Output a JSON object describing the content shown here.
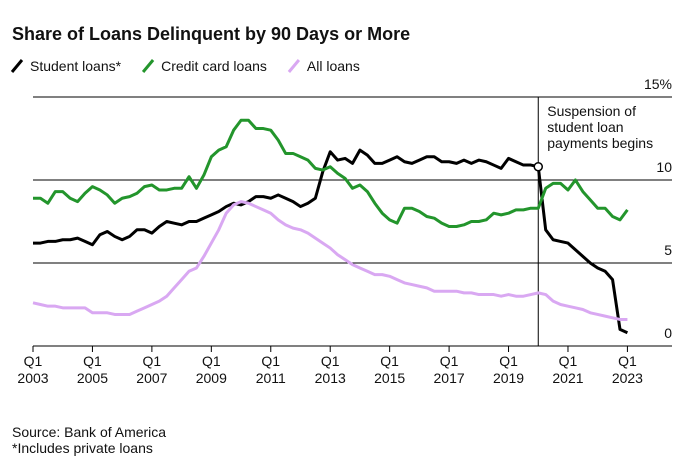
{
  "chart_data": {
    "type": "line",
    "title": "Share of Loans Delinquent by 90 Days or More",
    "source": "Source: Bank of America",
    "footnote": "*Includes private loans",
    "annotation": {
      "x": 2020,
      "text": [
        "Suspension of",
        "student loan",
        "payments begins"
      ]
    },
    "x": [
      2003,
      2003.25,
      2003.5,
      2003.75,
      2004,
      2004.25,
      2004.5,
      2004.75,
      2005,
      2005.25,
      2005.5,
      2005.75,
      2006,
      2006.25,
      2006.5,
      2006.75,
      2007,
      2007.25,
      2007.5,
      2007.75,
      2008,
      2008.25,
      2008.5,
      2008.75,
      2009,
      2009.25,
      2009.5,
      2009.75,
      2010,
      2010.25,
      2010.5,
      2010.75,
      2011,
      2011.25,
      2011.5,
      2011.75,
      2012,
      2012.25,
      2012.5,
      2012.75,
      2013,
      2013.25,
      2013.5,
      2013.75,
      2014,
      2014.25,
      2014.5,
      2014.75,
      2015,
      2015.25,
      2015.5,
      2015.75,
      2016,
      2016.25,
      2016.5,
      2016.75,
      2017,
      2017.25,
      2017.5,
      2017.75,
      2018,
      2018.25,
      2018.5,
      2018.75,
      2019,
      2019.25,
      2019.5,
      2019.75,
      2020,
      2020.25,
      2020.5,
      2020.75,
      2021,
      2021.25,
      2021.5,
      2021.75,
      2022,
      2022.25,
      2022.5,
      2022.75,
      2023
    ],
    "series": [
      {
        "name": "Student loans*",
        "color": "#000000",
        "values": [
          6.2,
          6.2,
          6.3,
          6.3,
          6.4,
          6.4,
          6.5,
          6.3,
          6.1,
          6.7,
          6.9,
          6.6,
          6.4,
          6.6,
          7.0,
          7.0,
          6.8,
          7.2,
          7.5,
          7.4,
          7.3,
          7.5,
          7.5,
          7.7,
          7.9,
          8.1,
          8.4,
          8.6,
          8.5,
          8.7,
          9.0,
          9.0,
          8.9,
          9.1,
          8.9,
          8.7,
          8.4,
          8.6,
          8.9,
          10.5,
          11.7,
          11.2,
          11.3,
          11.0,
          11.8,
          11.5,
          11.0,
          11.0,
          11.2,
          11.4,
          11.1,
          11.0,
          11.2,
          11.4,
          11.4,
          11.1,
          11.1,
          11.0,
          11.2,
          11.0,
          11.2,
          11.1,
          10.9,
          10.7,
          11.3,
          11.1,
          10.9,
          10.9,
          10.8,
          7.0,
          6.4,
          6.3,
          6.2,
          5.8,
          5.4,
          5.0,
          4.7,
          4.5,
          4.0,
          1.0,
          0.8
        ]
      },
      {
        "name": "Credit card loans",
        "color": "#23952c",
        "values": [
          8.9,
          8.9,
          8.6,
          9.3,
          9.3,
          8.9,
          8.7,
          9.2,
          9.6,
          9.4,
          9.1,
          8.6,
          8.9,
          9.0,
          9.2,
          9.6,
          9.7,
          9.4,
          9.4,
          9.5,
          9.5,
          10.2,
          9.5,
          10.3,
          11.4,
          11.8,
          12.0,
          13.0,
          13.6,
          13.6,
          13.1,
          13.1,
          13.0,
          12.4,
          11.6,
          11.6,
          11.4,
          11.2,
          10.7,
          10.6,
          10.8,
          10.4,
          10.1,
          9.5,
          9.7,
          9.3,
          8.6,
          8.0,
          7.6,
          7.4,
          8.3,
          8.3,
          8.1,
          7.8,
          7.7,
          7.4,
          7.2,
          7.2,
          7.3,
          7.5,
          7.5,
          7.6,
          8.0,
          7.9,
          8.0,
          8.2,
          8.2,
          8.3,
          8.3,
          9.5,
          9.8,
          9.8,
          9.4,
          10.0,
          9.3,
          8.8,
          8.3,
          8.3,
          7.8,
          7.6,
          8.2
        ]
      },
      {
        "name": "All loans",
        "color": "#d9a8f2",
        "values": [
          2.6,
          2.5,
          2.4,
          2.4,
          2.3,
          2.3,
          2.3,
          2.3,
          2.0,
          2.0,
          2.0,
          1.9,
          1.9,
          1.9,
          2.1,
          2.3,
          2.5,
          2.7,
          3.0,
          3.5,
          4.0,
          4.5,
          4.7,
          5.4,
          6.2,
          7.0,
          8.0,
          8.5,
          8.7,
          8.6,
          8.4,
          8.2,
          8.0,
          7.6,
          7.3,
          7.1,
          7.0,
          6.8,
          6.5,
          6.2,
          5.9,
          5.5,
          5.2,
          4.9,
          4.7,
          4.5,
          4.3,
          4.3,
          4.2,
          4.0,
          3.8,
          3.7,
          3.6,
          3.5,
          3.3,
          3.3,
          3.3,
          3.3,
          3.2,
          3.2,
          3.1,
          3.1,
          3.1,
          3.0,
          3.1,
          3.0,
          3.0,
          3.1,
          3.2,
          3.1,
          2.7,
          2.5,
          2.4,
          2.3,
          2.2,
          2.0,
          1.9,
          1.8,
          1.7,
          1.6,
          1.6
        ]
      }
    ],
    "xlim": [
      2003,
      2024.5
    ],
    "xticks": [
      {
        "value": 2003,
        "label": "Q1\n2003"
      },
      {
        "value": 2005,
        "label": "Q1\n2005"
      },
      {
        "value": 2007,
        "label": "Q1\n2007"
      },
      {
        "value": 2009,
        "label": "Q1\n2009"
      },
      {
        "value": 2011,
        "label": "Q1\n2011"
      },
      {
        "value": 2013,
        "label": "Q1\n2013"
      },
      {
        "value": 2015,
        "label": "Q1\n2015"
      },
      {
        "value": 2017,
        "label": "Q1\n2017"
      },
      {
        "value": 2019,
        "label": "Q1\n2019"
      },
      {
        "value": 2021,
        "label": "Q1\n2021"
      },
      {
        "value": 2023,
        "label": "Q1\n2023"
      }
    ],
    "ylim": [
      0,
      15
    ],
    "yticks": [
      0,
      5,
      10,
      {
        "value": 15,
        "label": "15%"
      }
    ],
    "grid": true,
    "y_axis_side": "right"
  }
}
